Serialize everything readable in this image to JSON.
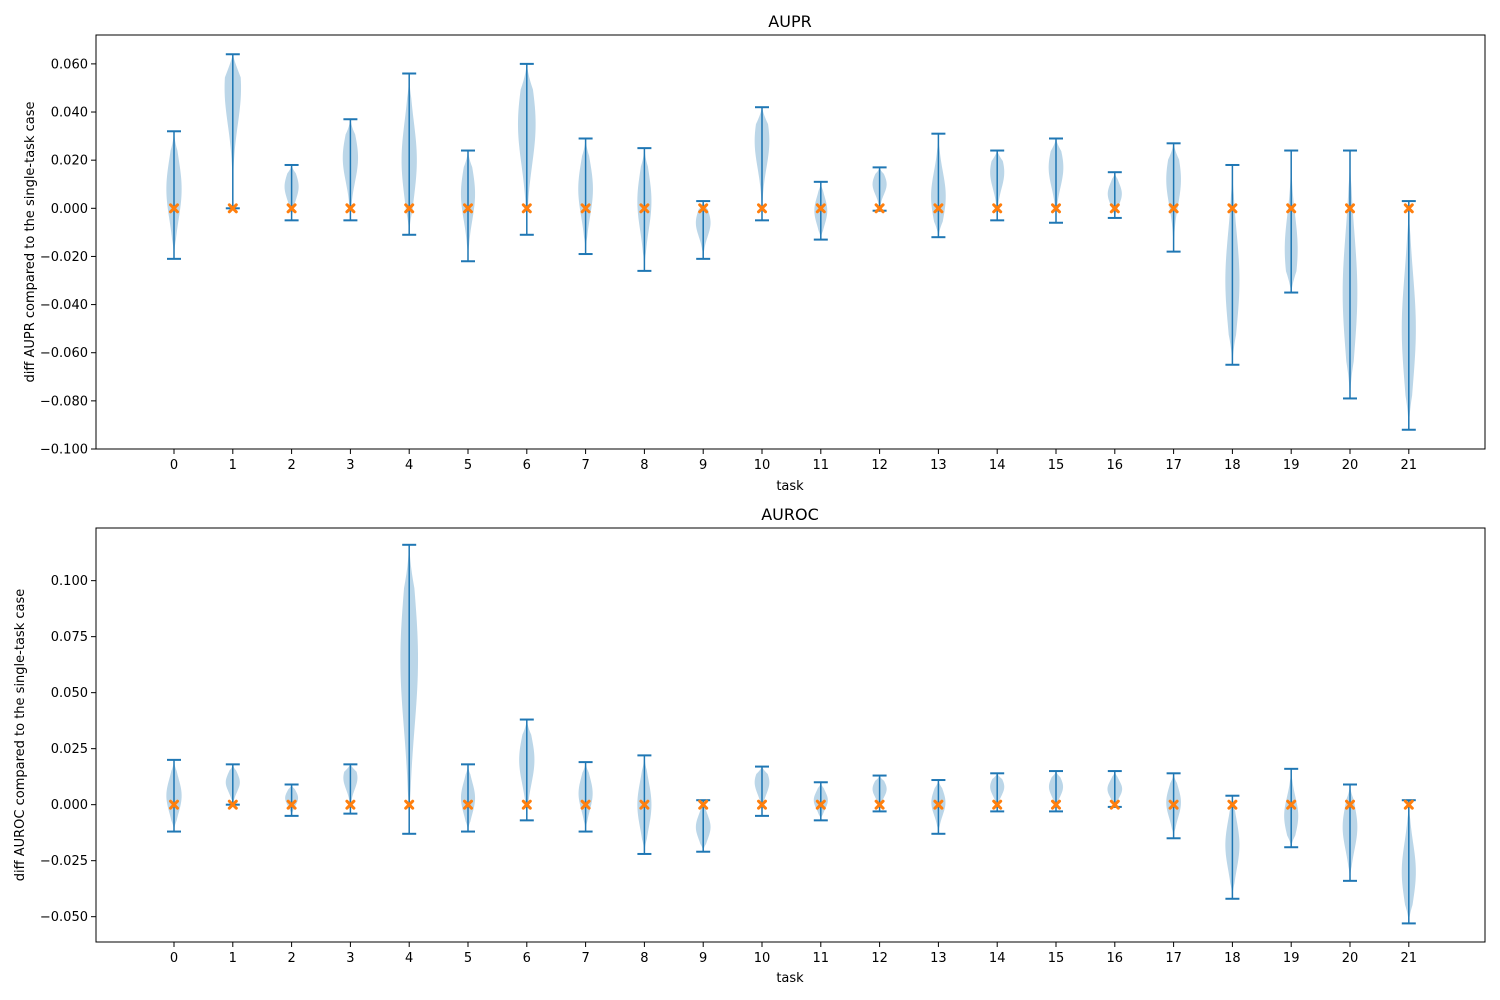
{
  "chart_data": [
    {
      "type": "violin",
      "title": "AUPR",
      "xlabel": "task",
      "ylabel": "diff AUPR compared to the single-task case",
      "categories": [
        "0",
        "1",
        "2",
        "3",
        "4",
        "5",
        "6",
        "7",
        "8",
        "9",
        "10",
        "11",
        "12",
        "13",
        "14",
        "15",
        "16",
        "17",
        "18",
        "19",
        "20",
        "21"
      ],
      "ylim": [
        -0.1,
        0.072
      ],
      "yticks": [
        -0.1,
        -0.08,
        -0.06,
        -0.04,
        -0.02,
        0.0,
        0.02,
        0.04,
        0.06
      ],
      "ytick_labels": [
        "−0.100",
        "−0.080",
        "−0.060",
        "−0.040",
        "−0.020",
        "0.000",
        "0.020",
        "0.040",
        "0.060"
      ],
      "min": [
        -0.021,
        0.0,
        -0.005,
        -0.005,
        -0.011,
        -0.022,
        -0.011,
        -0.019,
        -0.026,
        -0.021,
        -0.005,
        -0.013,
        -0.001,
        -0.012,
        -0.005,
        -0.006,
        -0.004,
        -0.018,
        -0.065,
        -0.035,
        -0.079,
        -0.092
      ],
      "max": [
        0.032,
        0.064,
        0.018,
        0.037,
        0.056,
        0.024,
        0.06,
        0.029,
        0.025,
        0.003,
        0.042,
        0.011,
        0.017,
        0.031,
        0.024,
        0.029,
        0.015,
        0.027,
        0.018,
        0.024,
        0.024,
        0.003
      ],
      "mode": [
        0.008,
        0.05,
        0.009,
        0.021,
        0.02,
        0.006,
        0.035,
        0.008,
        0.003,
        -0.006,
        0.028,
        -0.001,
        0.01,
        0.005,
        0.015,
        0.017,
        0.006,
        0.012,
        -0.03,
        -0.017,
        -0.035,
        -0.05
      ],
      "width": [
        0.026,
        0.028,
        0.024,
        0.026,
        0.026,
        0.024,
        0.03,
        0.025,
        0.024,
        0.025,
        0.025,
        0.022,
        0.024,
        0.025,
        0.024,
        0.025,
        0.024,
        0.025,
        0.024,
        0.022,
        0.025,
        0.024
      ],
      "baseline": [
        0,
        0,
        0,
        0,
        0,
        0,
        0,
        0,
        0,
        0,
        0,
        0,
        0,
        0,
        0,
        0,
        0,
        0,
        0,
        0,
        0,
        0
      ],
      "violin_color": "#1f77b4",
      "line_color": "#1f77b4",
      "marker_color": "#ff7f0e",
      "marker": "x"
    },
    {
      "type": "violin",
      "title": "AUROC",
      "xlabel": "task",
      "ylabel": "diff AUROC compared to the single-task case",
      "categories": [
        "0",
        "1",
        "2",
        "3",
        "4",
        "5",
        "6",
        "7",
        "8",
        "9",
        "10",
        "11",
        "12",
        "13",
        "14",
        "15",
        "16",
        "17",
        "18",
        "19",
        "20",
        "21"
      ],
      "ylim": [
        -0.0613,
        0.1235
      ],
      "yticks": [
        -0.05,
        -0.025,
        0.0,
        0.025,
        0.05,
        0.075,
        0.1
      ],
      "ytick_labels": [
        "−0.050",
        "−0.025",
        "0.000",
        "0.025",
        "0.050",
        "0.075",
        "0.100"
      ],
      "min": [
        -0.012,
        0.0,
        -0.005,
        -0.004,
        -0.013,
        -0.012,
        -0.007,
        -0.012,
        -0.022,
        -0.021,
        -0.005,
        -0.007,
        -0.003,
        -0.013,
        -0.003,
        -0.003,
        -0.001,
        -0.015,
        -0.042,
        -0.019,
        -0.034,
        -0.053
      ],
      "max": [
        0.02,
        0.018,
        0.009,
        0.018,
        0.116,
        0.018,
        0.038,
        0.019,
        0.022,
        0.002,
        0.017,
        0.01,
        0.013,
        0.011,
        0.014,
        0.015,
        0.015,
        0.014,
        0.004,
        0.016,
        0.009,
        0.002
      ],
      "mode": [
        0.004,
        0.01,
        0.003,
        0.012,
        0.065,
        0.003,
        0.02,
        0.005,
        0.0,
        -0.01,
        0.01,
        0.002,
        0.007,
        0.001,
        0.008,
        0.008,
        0.007,
        0.001,
        -0.018,
        -0.005,
        -0.01,
        -0.03
      ],
      "width": [
        0.026,
        0.024,
        0.022,
        0.024,
        0.03,
        0.024,
        0.026,
        0.024,
        0.024,
        0.025,
        0.025,
        0.024,
        0.024,
        0.024,
        0.024,
        0.024,
        0.025,
        0.025,
        0.024,
        0.024,
        0.025,
        0.024
      ],
      "baseline": [
        0,
        0,
        0,
        0,
        0,
        0,
        0,
        0,
        0,
        0,
        0,
        0,
        0,
        0,
        0,
        0,
        0,
        0,
        0,
        0,
        0,
        0
      ],
      "violin_color": "#1f77b4",
      "line_color": "#1f77b4",
      "marker_color": "#ff7f0e",
      "marker": "x"
    }
  ]
}
